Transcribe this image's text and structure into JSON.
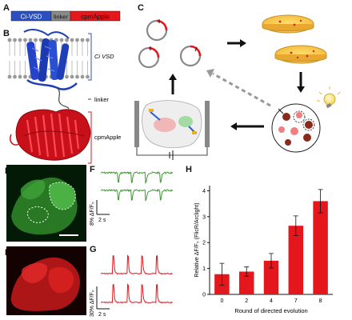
{
  "panels": {
    "A": "A",
    "B": "B",
    "C": "C",
    "D": "D",
    "E": "E",
    "F": "F",
    "G": "G",
    "H": "H"
  },
  "construct": {
    "segments": [
      "Ci-VSD",
      "linker",
      "cpmApple"
    ],
    "colors": [
      "#2a4fc0",
      "#8a8a8a",
      "#e3171c"
    ]
  },
  "structure_labels": {
    "vsd": "Ci VSD",
    "linker": "linker",
    "fp": "cpmApple"
  },
  "trace_F": {
    "scale_label": "8% ΔF/F₀",
    "time_label": "2 s",
    "color": "#3a9a2e"
  },
  "trace_G": {
    "scale_label": "30% ΔF/F₀",
    "time_label": "2 s",
    "color": "#e3171c"
  },
  "chart_data": {
    "type": "bar",
    "categories": [
      "0",
      "2",
      "4",
      "7",
      "8"
    ],
    "values": [
      0.78,
      0.88,
      1.3,
      2.65,
      3.6
    ],
    "errors": [
      0.42,
      0.18,
      0.28,
      0.38,
      0.45
    ],
    "xlabel": "Round of directed evolution",
    "ylabel": "Relative ΔF/F₀ (FlicR/Arclight)",
    "ylim": [
      0,
      4.2
    ],
    "yticks": [
      "0",
      "1",
      "2",
      "3",
      "4"
    ],
    "bar_color": "#e3171c"
  }
}
